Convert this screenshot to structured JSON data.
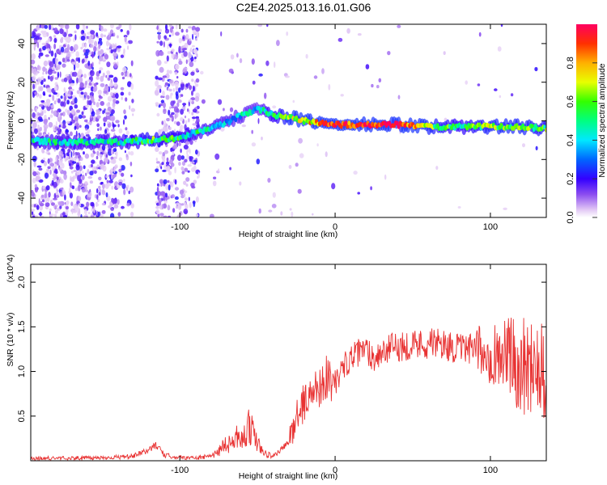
{
  "title": "C2E4.2025.013.16.01.G06",
  "chart_data": [
    {
      "type": "heatmap",
      "xlabel": "Height of straight line (km)",
      "ylabel": "Frequency (Hz)",
      "xlim": [
        -196,
        136
      ],
      "ylim": [
        -50,
        50
      ],
      "xticks": [
        -100,
        0,
        100
      ],
      "xtick_labels": [
        "-100",
        "0",
        "100"
      ],
      "yticks": [
        -40,
        -20,
        0,
        20,
        40
      ],
      "ytick_labels": [
        "-40",
        "-20",
        "0",
        "20",
        "40"
      ],
      "colorbar": {
        "label": "Normalized spectral amplitude",
        "range": [
          0,
          1
        ],
        "ticks": [
          0.0,
          0.2,
          0.4,
          0.6,
          0.8
        ],
        "tick_labels": [
          "0.0",
          "0.2",
          "0.4",
          "0.6",
          "0.8"
        ]
      },
      "ridge": {
        "x": [
          -196,
          -180,
          -160,
          -140,
          -120,
          -100,
          -90,
          -80,
          -70,
          -60,
          -50,
          -45,
          -40,
          -30,
          -20,
          -10,
          0,
          20,
          40,
          60,
          80,
          100,
          120,
          136
        ],
        "freq": [
          -10,
          -11,
          -11,
          -11,
          -10,
          -9,
          -6,
          -4,
          -1,
          3,
          6,
          5,
          3,
          2,
          0,
          -1,
          -2,
          -2,
          -2,
          -3,
          -3,
          -3,
          -3,
          -4
        ],
        "amplitude": [
          0.45,
          0.45,
          0.45,
          0.45,
          0.55,
          0.5,
          0.45,
          0.45,
          0.4,
          0.4,
          0.35,
          0.45,
          0.5,
          0.6,
          0.7,
          0.8,
          0.85,
          0.95,
          0.95,
          0.6,
          0.5,
          0.6,
          0.6,
          0.55
        ]
      },
      "grid": false
    },
    {
      "type": "line",
      "xlabel": "Height of straight line (km)",
      "ylabel": "SNR (10 * v/v)",
      "y_multiplier": "(x10^4)",
      "xlim": [
        -196,
        136
      ],
      "ylim": [
        0,
        2.2
      ],
      "xticks": [
        -100,
        0,
        100
      ],
      "xtick_labels": [
        "-100",
        "0",
        "100"
      ],
      "yticks": [
        0.5,
        1.0,
        1.5,
        2.0
      ],
      "ytick_labels": [
        "0.5",
        "1.0",
        "1.5",
        "2.0"
      ],
      "series": [
        {
          "color": "#e83232",
          "x": [
            -196,
            -180,
            -160,
            -140,
            -130,
            -120,
            -115,
            -110,
            -100,
            -90,
            -80,
            -75,
            -70,
            -60,
            -55,
            -50,
            -45,
            -40,
            -35,
            -30,
            -25,
            -20,
            -15,
            -10,
            -5,
            0,
            5,
            10,
            15,
            20,
            25,
            30,
            40,
            50,
            60,
            70,
            80,
            90,
            100,
            110,
            120,
            130,
            136
          ],
          "y": [
            0.02,
            0.03,
            0.03,
            0.04,
            0.05,
            0.12,
            0.18,
            0.06,
            0.04,
            0.03,
            0.05,
            0.12,
            0.2,
            0.3,
            0.4,
            0.2,
            0.08,
            0.05,
            0.12,
            0.2,
            0.5,
            0.65,
            0.75,
            0.85,
            0.95,
            0.85,
            1.05,
            1.15,
            1.2,
            1.25,
            1.15,
            1.22,
            1.28,
            1.3,
            1.32,
            1.3,
            1.25,
            1.25,
            1.2,
            1.2,
            1.05,
            1.15,
            1.1
          ]
        }
      ],
      "grid": false
    }
  ]
}
